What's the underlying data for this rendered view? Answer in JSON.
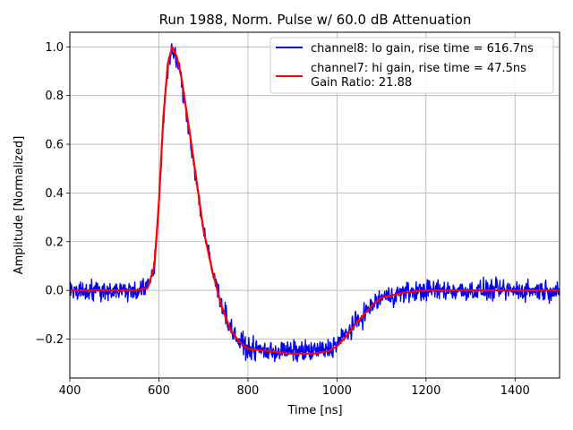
{
  "chart_data": {
    "type": "line",
    "title": "Run 1988, Norm. Pulse w/ 60.0 dB Attenuation",
    "xlabel": "Time [ns]",
    "ylabel": "Amplitude [Normalized]",
    "xlim": [
      400,
      1500
    ],
    "ylim": [
      -0.36,
      1.06
    ],
    "xticks": [
      400,
      600,
      800,
      1000,
      1200,
      1400
    ],
    "yticks": [
      -0.2,
      0.0,
      0.2,
      0.4,
      0.6,
      0.8,
      1.0
    ],
    "xtick_labels": [
      "400",
      "600",
      "800",
      "1000",
      "1200",
      "1400"
    ],
    "ytick_labels": [
      "−0.2",
      "0.0",
      "0.2",
      "0.4",
      "0.6",
      "0.8",
      "1.0"
    ],
    "grid": true,
    "legend_position": "top-right",
    "series": [
      {
        "name": "channel8: lo gain, rise time = 616.7ns",
        "color": "#0000ff",
        "noise": 0.03,
        "x": [
          400,
          550,
          575,
          590,
          600,
          610,
          620,
          630,
          640,
          650,
          660,
          670,
          680,
          690,
          700,
          720,
          740,
          760,
          780,
          800,
          850,
          900,
          950,
          980,
          1000,
          1020,
          1050,
          1080,
          1100,
          1150,
          1200,
          1250,
          1300,
          1400,
          1500
        ],
        "y": [
          0.0,
          0.0,
          0.01,
          0.1,
          0.35,
          0.7,
          0.92,
          0.98,
          0.95,
          0.87,
          0.75,
          0.63,
          0.5,
          0.38,
          0.25,
          0.08,
          -0.05,
          -0.15,
          -0.21,
          -0.24,
          -0.25,
          -0.25,
          -0.25,
          -0.24,
          -0.22,
          -0.18,
          -0.12,
          -0.06,
          -0.03,
          -0.01,
          0.0,
          0.0,
          0.0,
          0.0,
          0.0
        ]
      },
      {
        "name": "channel7: hi gain, rise time = 47.5ns",
        "color": "#ff0000",
        "noise": 0.0,
        "x": [
          400,
          550,
          575,
          590,
          600,
          610,
          620,
          630,
          640,
          650,
          660,
          670,
          680,
          690,
          700,
          720,
          740,
          760,
          780,
          800,
          850,
          900,
          950,
          980,
          1000,
          1020,
          1050,
          1080,
          1100,
          1150,
          1200,
          1250,
          1300,
          1400,
          1500
        ],
        "y": [
          0.0,
          0.0,
          0.01,
          0.1,
          0.36,
          0.71,
          0.93,
          1.0,
          0.96,
          0.88,
          0.76,
          0.64,
          0.51,
          0.38,
          0.25,
          0.08,
          -0.06,
          -0.16,
          -0.21,
          -0.24,
          -0.25,
          -0.26,
          -0.26,
          -0.25,
          -0.23,
          -0.19,
          -0.12,
          -0.06,
          -0.03,
          -0.01,
          0.0,
          0.0,
          0.0,
          0.0,
          0.0
        ]
      }
    ],
    "annotations": [
      "Gain Ratio: 21.88"
    ]
  }
}
